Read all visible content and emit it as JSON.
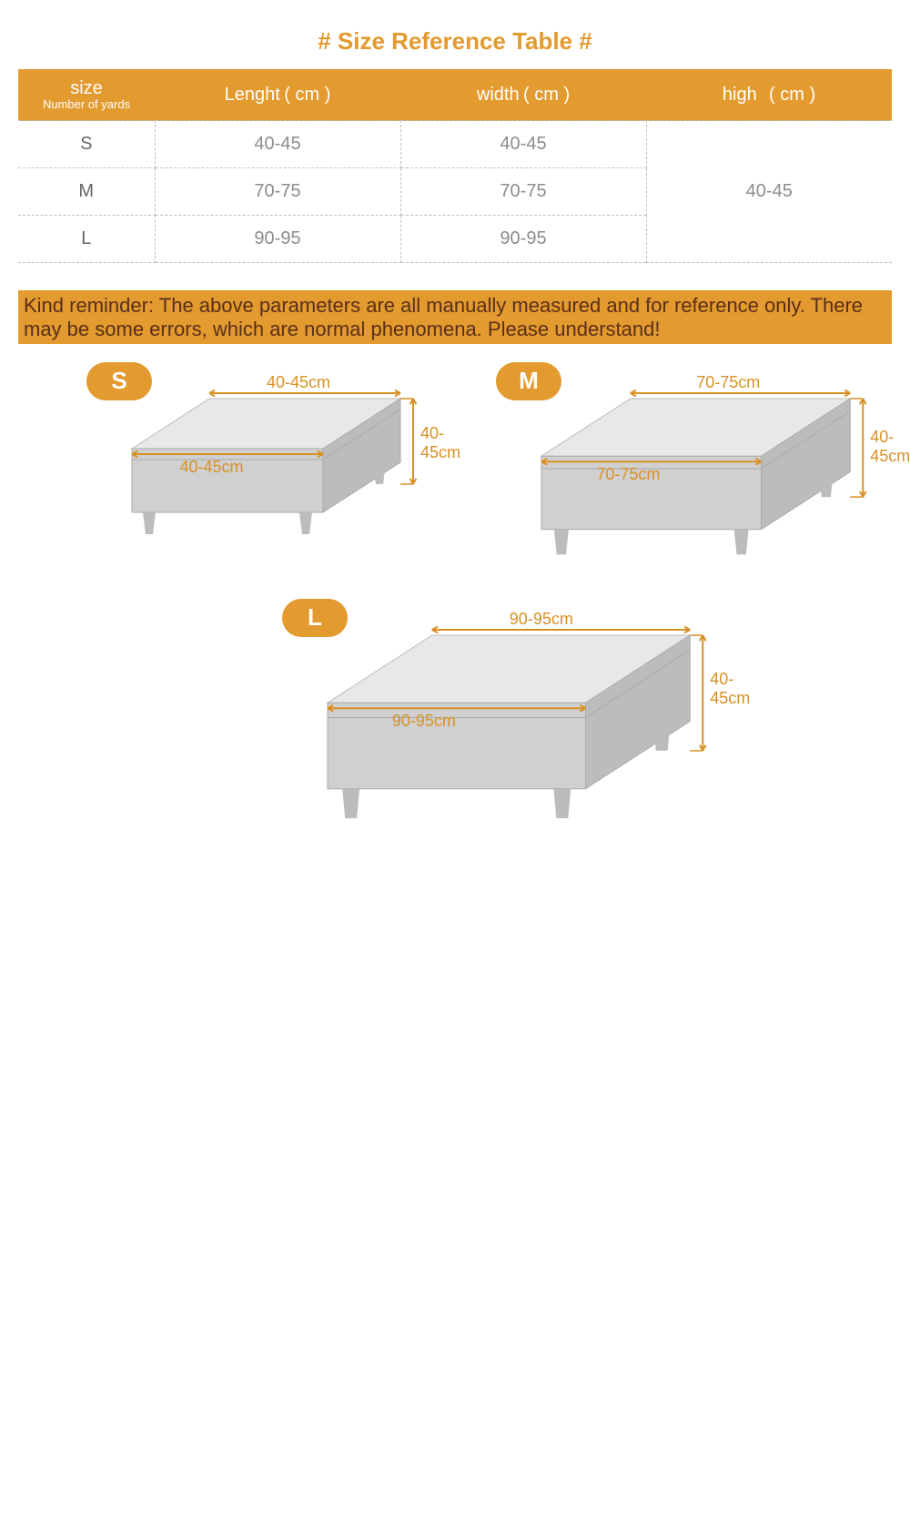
{
  "colors": {
    "accent": "#e39a2e",
    "title": "#e39a2e",
    "header_bg": "#e39a2e",
    "reminder_bg": "#e39a2e",
    "reminder_text": "#5a2f1a",
    "table_text": "#8c8c8c",
    "table_size_text": "#666666",
    "border_dash": "#bfbfbf",
    "ottoman_light": "#e8e8e8",
    "ottoman_mid": "#d0d0d0",
    "ottoman_dark": "#bcbcbc",
    "arrow": "#d99024"
  },
  "title": {
    "text": "#  Size Reference Table  #",
    "fontsize": 26
  },
  "table": {
    "headers": {
      "size_main": "size",
      "size_sub": "Number of yards",
      "length": "Lenght",
      "length_unit": "( cm )",
      "width": "width",
      "width_unit": "( cm )",
      "high": "high",
      "high_unit": "( cm )"
    },
    "rows": [
      {
        "size": "S",
        "length": "40-45",
        "width": "40-45"
      },
      {
        "size": "M",
        "length": "70-75",
        "width": "70-75"
      },
      {
        "size": "L",
        "length": "90-95",
        "width": "90-95"
      }
    ],
    "high_merged": "40-45"
  },
  "reminder": "Kind reminder: The above parameters are all manually measured and for reference only. There may be some errors, which are normal phenomena. Please understand!",
  "diagrams": [
    {
      "label": "S",
      "length": "40-45cm",
      "width": "40-45cm",
      "height": "40-45cm"
    },
    {
      "label": "M",
      "length": "70-75cm",
      "width": "70-75cm",
      "height": "40-45cm"
    },
    {
      "label": "L",
      "length": "90-95cm",
      "width": "90-95cm",
      "height": "40-45cm"
    }
  ]
}
